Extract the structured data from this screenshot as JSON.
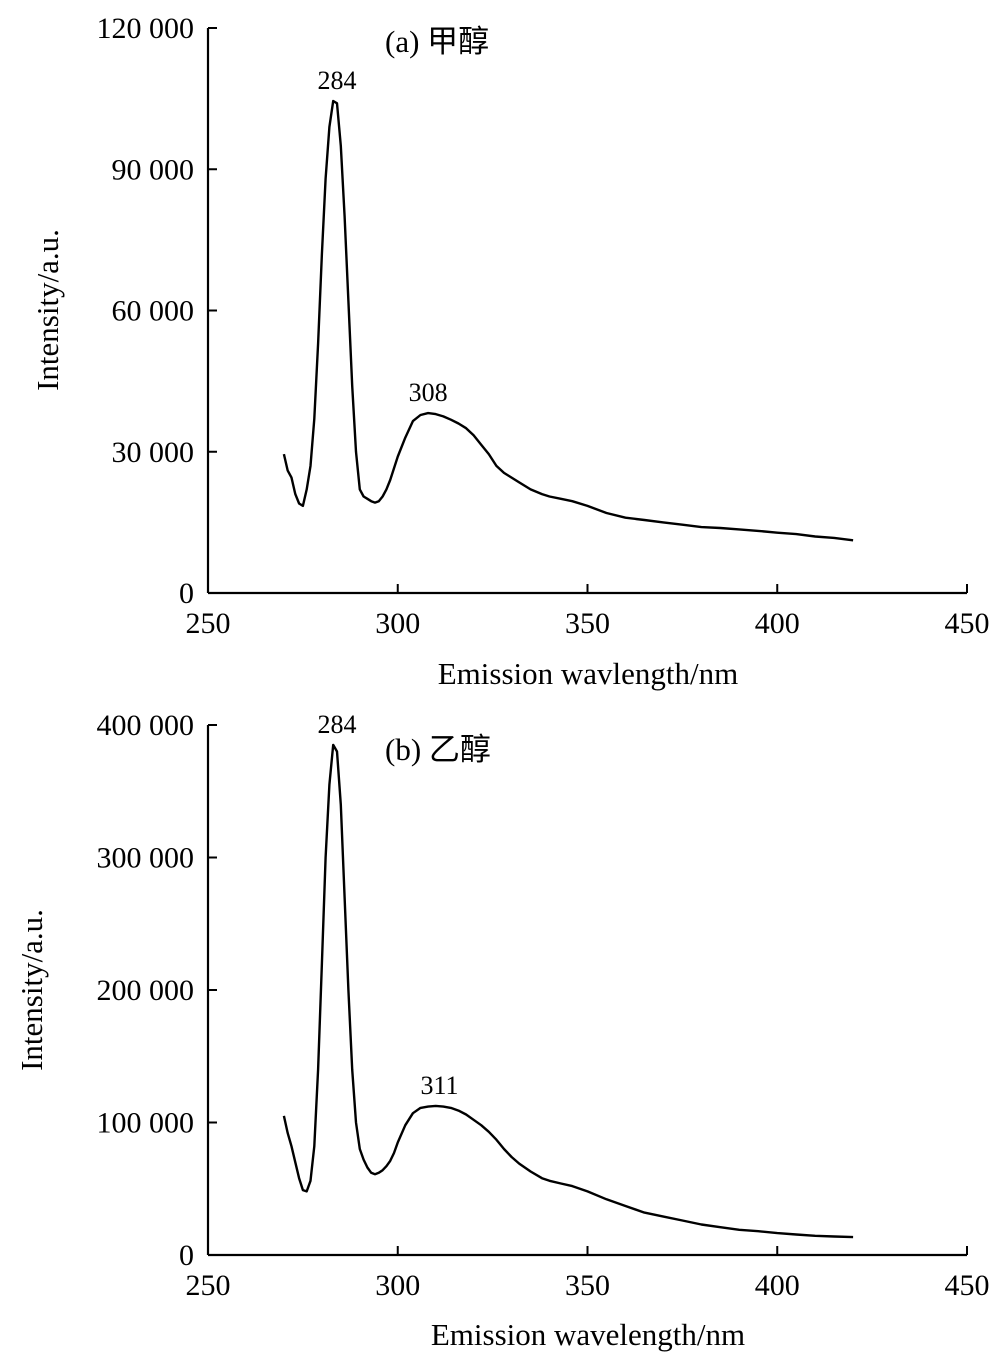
{
  "chart_data": [
    {
      "type": "line",
      "panel_label": "(a) 甲醇",
      "xlabel": "Emission wavlength/nm",
      "ylabel": "Intensity/a.u.",
      "xlim": [
        250,
        450
      ],
      "ylim": [
        0,
        120000
      ],
      "xticks": [
        250,
        300,
        350,
        400,
        450
      ],
      "xtick_labels": [
        "250",
        "300",
        "350",
        "400",
        "450"
      ],
      "yticks": [
        0,
        30000,
        60000,
        90000,
        120000
      ],
      "ytick_labels": [
        "0",
        "30 000",
        "60 000",
        "90 000",
        "120 000"
      ],
      "series": [
        {
          "x": [
            270,
            271,
            272,
            273,
            274,
            275,
            276,
            277,
            278,
            279,
            280,
            281,
            282,
            283,
            284,
            285,
            286,
            287,
            288,
            289,
            290,
            291,
            292,
            293,
            294,
            295,
            296,
            297,
            298,
            299,
            300,
            302,
            304,
            306,
            308,
            310,
            312,
            314,
            316,
            318,
            320,
            322,
            324,
            326,
            328,
            330,
            332,
            335,
            338,
            340,
            343,
            346,
            350,
            355,
            360,
            365,
            370,
            375,
            380,
            385,
            390,
            395,
            400,
            405,
            410,
            415,
            420
          ],
          "y": [
            29500,
            26000,
            24500,
            21000,
            19000,
            18500,
            22000,
            27000,
            37000,
            53000,
            72000,
            88000,
            99000,
            104500,
            104000,
            95000,
            80000,
            62000,
            44000,
            30000,
            22000,
            20500,
            20000,
            19500,
            19200,
            19500,
            20500,
            22000,
            24000,
            26500,
            29000,
            33000,
            36500,
            37800,
            38200,
            38000,
            37500,
            36800,
            36000,
            35000,
            33500,
            31500,
            29500,
            27000,
            25500,
            24500,
            23500,
            22000,
            21000,
            20500,
            20000,
            19500,
            18500,
            17000,
            16000,
            15500,
            15000,
            14500,
            14000,
            13800,
            13500,
            13200,
            12800,
            12500,
            12000,
            11700,
            11200
          ]
        }
      ],
      "annotations": [
        {
          "text": "284",
          "x": 284,
          "y": 104500
        },
        {
          "text": "308",
          "x": 308,
          "y": 38200
        }
      ]
    },
    {
      "type": "line",
      "panel_label": "(b) 乙醇",
      "xlabel": "Emission wavelength/nm",
      "ylabel": "Intensity/a.u.",
      "xlim": [
        250,
        450
      ],
      "ylim": [
        0,
        400000
      ],
      "xticks": [
        250,
        300,
        350,
        400,
        450
      ],
      "xtick_labels": [
        "250",
        "300",
        "350",
        "400",
        "450"
      ],
      "yticks": [
        0,
        100000,
        200000,
        300000,
        400000
      ],
      "ytick_labels": [
        "0",
        "100 000",
        "200 000",
        "300 000",
        "400 000"
      ],
      "series": [
        {
          "x": [
            270,
            271,
            272,
            273,
            274,
            275,
            276,
            277,
            278,
            279,
            280,
            281,
            282,
            283,
            284,
            285,
            286,
            287,
            288,
            289,
            290,
            291,
            292,
            293,
            294,
            295,
            296,
            297,
            298,
            299,
            300,
            302,
            304,
            306,
            308,
            310,
            312,
            314,
            316,
            318,
            320,
            322,
            324,
            326,
            328,
            330,
            332,
            335,
            338,
            340,
            343,
            346,
            350,
            355,
            360,
            365,
            370,
            375,
            380,
            385,
            390,
            395,
            400,
            405,
            410,
            415,
            420
          ],
          "y": [
            105000,
            92000,
            82000,
            70000,
            58000,
            49000,
            48000,
            56000,
            82000,
            140000,
            220000,
            300000,
            355000,
            385000,
            380000,
            340000,
            270000,
            200000,
            140000,
            100000,
            80000,
            72000,
            66000,
            62000,
            61000,
            62000,
            64000,
            67000,
            71000,
            77000,
            85000,
            98000,
            107000,
            111000,
            112000,
            112500,
            112000,
            111000,
            109000,
            106000,
            102000,
            98000,
            93000,
            87000,
            80000,
            74000,
            69000,
            63000,
            58000,
            56000,
            54000,
            52000,
            48000,
            42000,
            37000,
            32000,
            29000,
            26000,
            23000,
            21000,
            19000,
            18000,
            16500,
            15500,
            14500,
            14000,
            13500
          ]
        }
      ],
      "annotations": [
        {
          "text": "284",
          "x": 284,
          "y": 385000
        },
        {
          "text": "311",
          "x": 311,
          "y": 112500
        }
      ]
    }
  ]
}
